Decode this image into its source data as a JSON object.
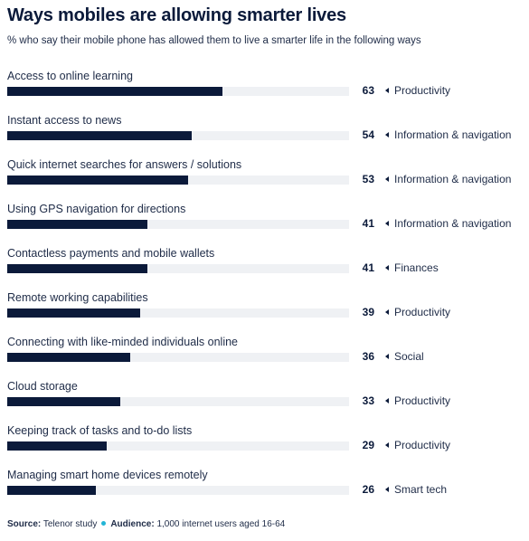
{
  "title": "Ways mobiles are allowing smarter lives",
  "subtitle": "% who say their mobile phone has allowed them to live a smarter life in the following ways",
  "colors": {
    "bar": "#0b1a3a",
    "track": "#eff1f4",
    "accent_dot": "#22b5d6"
  },
  "chart_data": {
    "type": "bar",
    "orientation": "horizontal",
    "title": "Ways mobiles are allowing smarter lives",
    "subtitle": "% who say their mobile phone has allowed them to live a smarter life in the following ways",
    "xlim": [
      0,
      100
    ],
    "grid": false,
    "categories": [
      "Access to online learning",
      "Instant access to news",
      "Quick internet searches for answers / solutions",
      "Using GPS navigation for directions",
      "Contactless payments and mobile wallets",
      "Remote working capabilities",
      "Connecting with like-minded individuals online",
      "Cloud storage",
      "Keeping track of tasks and to-do lists",
      "Managing smart home devices remotely"
    ],
    "values": [
      63,
      54,
      53,
      41,
      41,
      39,
      36,
      33,
      29,
      26
    ],
    "groups": [
      "Productivity",
      "Information & navigation",
      "Information & navigation",
      "Information & navigation",
      "Finances",
      "Productivity",
      "Social",
      "Productivity",
      "Productivity",
      "Smart tech"
    ]
  },
  "footer": {
    "source_label": "Source:",
    "source_value": "Telenor study",
    "audience_label": "Audience:",
    "audience_value": "1,000 internet users aged 16-64"
  }
}
